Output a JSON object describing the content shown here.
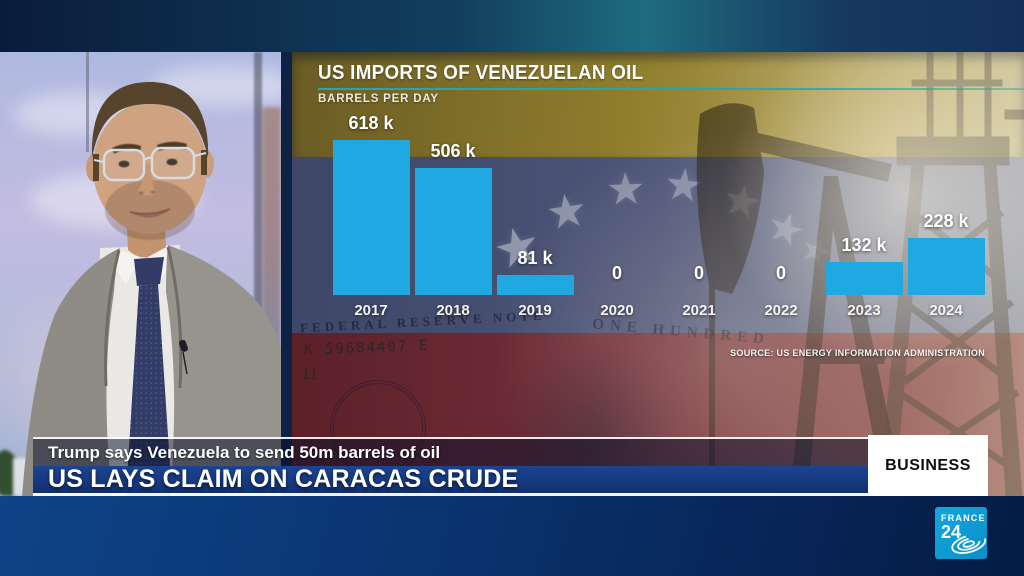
{
  "channel": {
    "logo_line1": "FRANCE",
    "logo_line2": "24",
    "program_badge": "BUSINESS"
  },
  "headline": {
    "kicker": "Trump says Venezuela to send 50m barrels of oil",
    "title": "US LAYS CLAIM ON CARACAS CRUDE"
  },
  "chart_data": {
    "type": "bar",
    "title": "US IMPORTS OF VENEZUELAN OIL",
    "subtitle": "BARRELS PER DAY",
    "unit": "thousand barrels per day",
    "categories": [
      "2017",
      "2018",
      "2019",
      "2020",
      "2021",
      "2022",
      "2023",
      "2024"
    ],
    "values": [
      618,
      506,
      81,
      0,
      0,
      0,
      132,
      228
    ],
    "value_labels": [
      "618 k",
      "506 k",
      "81 k",
      "0",
      "0",
      "0",
      "132 k",
      "228 k"
    ],
    "source": "SOURCE: US ENERGY INFORMATION ADMINISTRATION",
    "bar_color": "#1fa9e2",
    "ylim": [
      0,
      650
    ],
    "grid": false,
    "legend": "none"
  },
  "background_decor": {
    "bill_arc_text": "FEDERAL RESERVE NOTE",
    "bill_serial": "K 59684407 E",
    "bill_plate": "11",
    "bill_edge_text": "ONE HUNDRED"
  },
  "colors": {
    "bar": "#1fa9e2",
    "brand_blue": "#0d9bd6",
    "banner_blue": "#16357d",
    "flag_yellow": "#94822f",
    "flag_blue": "#4a527c",
    "flag_red": "#6e2a31",
    "badge_bg": "#ffffff",
    "badge_text": "#111111",
    "title_rule_teal": "#2fa3a0"
  }
}
